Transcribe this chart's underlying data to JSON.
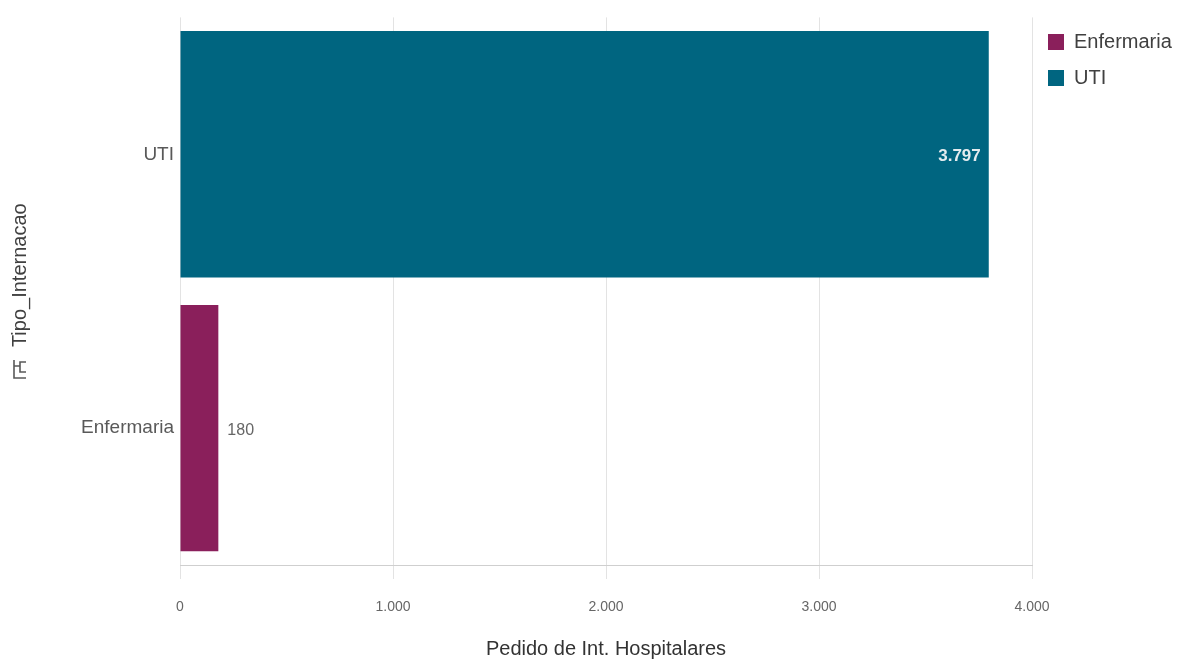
{
  "chart_data": {
    "type": "bar",
    "orientation": "horizontal",
    "categories": [
      "UTI",
      "Enfermaria"
    ],
    "series": [
      {
        "name": "Enfermaria",
        "color": "#8a1f5b",
        "values": [
          null,
          180
        ],
        "value_labels": [
          null,
          "180"
        ]
      },
      {
        "name": "UTI",
        "color": "#006580",
        "values": [
          3797,
          null
        ],
        "value_labels": [
          "3.797",
          null
        ]
      }
    ],
    "xlabel": "Pedido de Int. Hospitalares",
    "ylabel": "Tipo_Internacao",
    "xlim": [
      0,
      4000
    ],
    "xticks": [
      0,
      {
        "value": 1000,
        "label": "1.000"
      },
      {
        "value": 2000,
        "label": "2.000"
      },
      {
        "value": 3000,
        "label": "3.000"
      },
      {
        "value": 4000,
        "label": "4.000"
      }
    ],
    "grid": "x",
    "legend": "top right"
  }
}
